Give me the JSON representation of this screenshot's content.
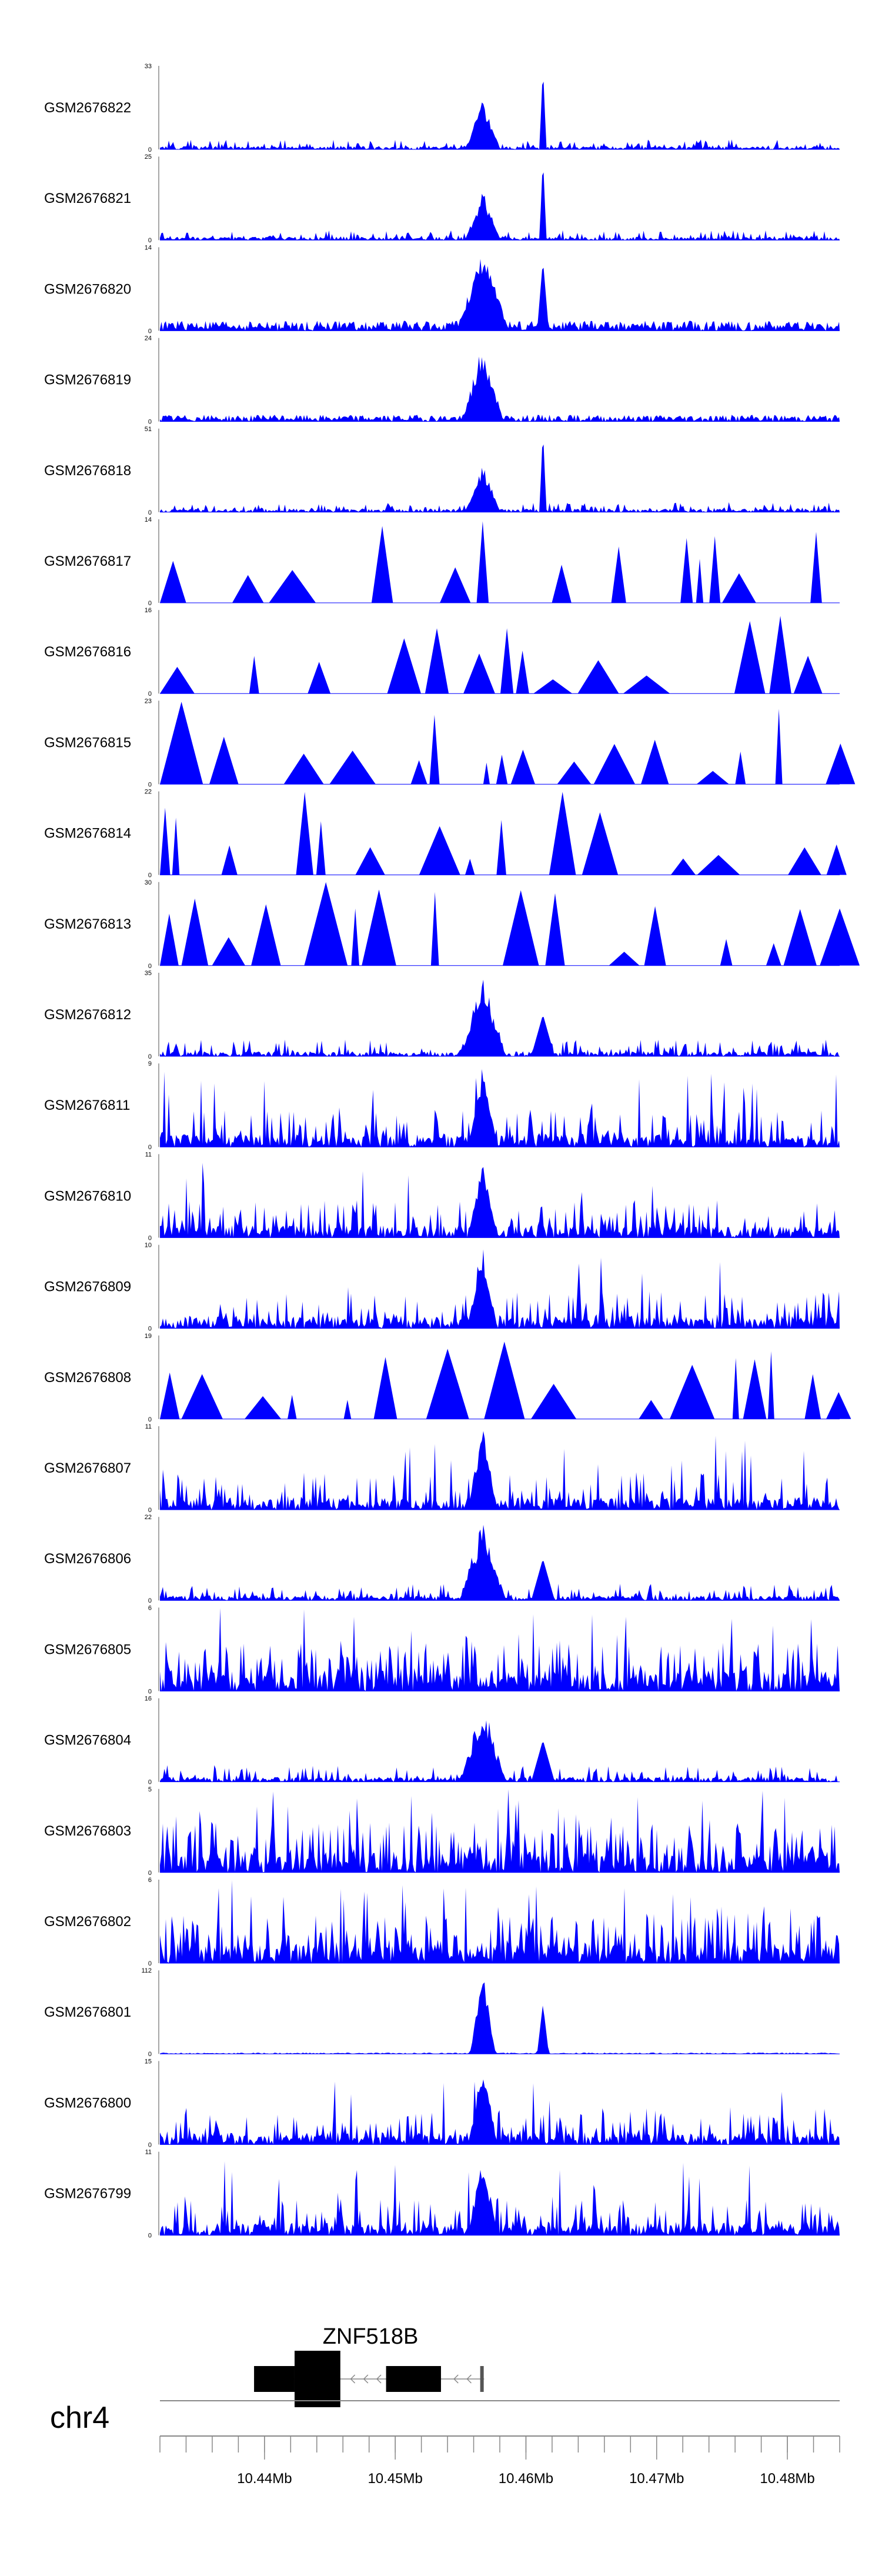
{
  "chart_data": {
    "type": "area",
    "title": "",
    "chromosome": "chr4",
    "x_range_mb": [
      10.432,
      10.484
    ],
    "x_ticks": [
      "10.44Mb",
      "10.45Mb",
      "10.46Mb",
      "10.47Mb",
      "10.48Mb"
    ],
    "x_tick_values_mb": [
      10.44,
      10.45,
      10.46,
      10.47,
      10.48
    ],
    "gene": {
      "name": "ZNF518B",
      "strand": "-",
      "start_mb": 10.4392,
      "end_mb": 10.4568
    },
    "series_color": "#0000ff",
    "tracks": [
      {
        "name": "GSM2676822",
        "ymax": "33",
        "ymin": "0",
        "profile": "sharp",
        "seed": 822
      },
      {
        "name": "GSM2676821",
        "ymax": "25",
        "ymin": "0",
        "profile": "sharp",
        "seed": 821
      },
      {
        "name": "GSM2676820",
        "ymax": "14",
        "ymin": "0",
        "profile": "broad",
        "seed": 820
      },
      {
        "name": "GSM2676819",
        "ymax": "24",
        "ymin": "0",
        "profile": "single",
        "seed": 819
      },
      {
        "name": "GSM2676818",
        "ymax": "51",
        "ymin": "0",
        "profile": "sharp",
        "seed": 818
      },
      {
        "name": "GSM2676817",
        "ymax": "14",
        "ymin": "0",
        "profile": "sparse",
        "seed": 817
      },
      {
        "name": "GSM2676816",
        "ymax": "16",
        "ymin": "0",
        "profile": "sparse",
        "seed": 816
      },
      {
        "name": "GSM2676815",
        "ymax": "23",
        "ymin": "0",
        "profile": "sparse",
        "seed": 815
      },
      {
        "name": "GSM2676814",
        "ymax": "22",
        "ymin": "0",
        "profile": "sparse",
        "seed": 814
      },
      {
        "name": "GSM2676813",
        "ymax": "30",
        "ymin": "0",
        "profile": "sparse",
        "seed": 813
      },
      {
        "name": "GSM2676812",
        "ymax": "35",
        "ymin": "0",
        "profile": "mid",
        "seed": 812
      },
      {
        "name": "GSM2676811",
        "ymax": "9",
        "ymin": "0",
        "profile": "dense",
        "seed": 811
      },
      {
        "name": "GSM2676810",
        "ymax": "11",
        "ymin": "0",
        "profile": "dense",
        "seed": 810
      },
      {
        "name": "GSM2676809",
        "ymax": "10",
        "ymin": "0",
        "profile": "dense",
        "seed": 809
      },
      {
        "name": "GSM2676808",
        "ymax": "19",
        "ymin": "0",
        "profile": "sparse",
        "seed": 808
      },
      {
        "name": "GSM2676807",
        "ymax": "11",
        "ymin": "0",
        "profile": "dense",
        "seed": 807
      },
      {
        "name": "GSM2676806",
        "ymax": "22",
        "ymin": "0",
        "profile": "mid",
        "seed": 806
      },
      {
        "name": "GSM2676805",
        "ymax": "6",
        "ymin": "0",
        "profile": "noise",
        "seed": 805
      },
      {
        "name": "GSM2676804",
        "ymax": "16",
        "ymin": "0",
        "profile": "mid",
        "seed": 804
      },
      {
        "name": "GSM2676803",
        "ymax": "5",
        "ymin": "0",
        "profile": "noise",
        "seed": 803
      },
      {
        "name": "GSM2676802",
        "ymax": "6",
        "ymin": "0",
        "profile": "noise",
        "seed": 802
      },
      {
        "name": "GSM2676801",
        "ymax": "112",
        "ymin": "0",
        "profile": "clean",
        "seed": 801
      },
      {
        "name": "GSM2676800",
        "ymax": "15",
        "ymin": "0",
        "profile": "dense",
        "seed": 800
      },
      {
        "name": "GSM2676799",
        "ymax": "11",
        "ymin": "0",
        "profile": "dense",
        "seed": 799
      }
    ]
  }
}
